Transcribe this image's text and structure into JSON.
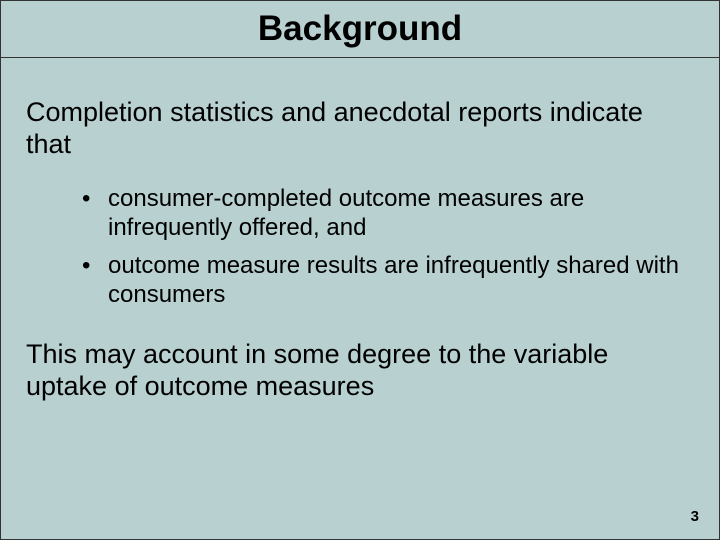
{
  "slide": {
    "title": "Background",
    "intro": "Completion statistics and anecdotal reports indicate that",
    "bullets": [
      "consumer-completed outcome measures are infrequently offered, and",
      "outcome measure results are infrequently shared with consumers"
    ],
    "closing": "This may account in some degree to the variable uptake of outcome measures",
    "page_number": "3",
    "style": {
      "background_color": "#b8d0d0",
      "text_color": "#000000",
      "title_fontsize": 35,
      "title_fontweight": "bold",
      "intro_fontsize": 27,
      "bullet_fontsize": 24,
      "closing_fontsize": 27,
      "pagenumber_fontsize": 15,
      "underline_color": "#333333",
      "font_family": "Arial"
    }
  }
}
